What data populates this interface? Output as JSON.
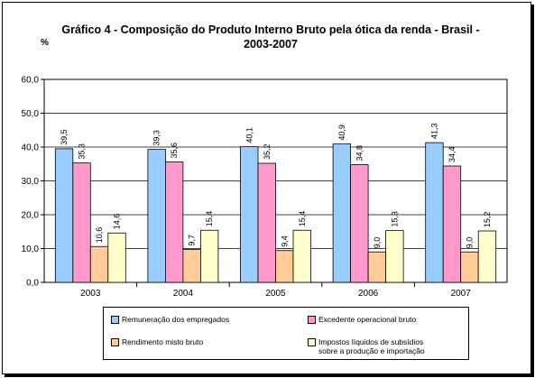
{
  "chart_data": {
    "type": "bar",
    "title": "Gráfico 4 - Composição do Produto Interno Bruto pela ótica da renda - Brasil -",
    "subtitle": "2003-2007",
    "ylabel": "%",
    "ylim": [
      0,
      60
    ],
    "yticks": [
      "0,0",
      "10,0",
      "20,0",
      "30,0",
      "40,0",
      "50,0",
      "60,0"
    ],
    "categories": [
      "2003",
      "2004",
      "2005",
      "2006",
      "2007"
    ],
    "grid": true,
    "legend_position": "bottom",
    "series": [
      {
        "name": "Remuneração dos empregados",
        "color": "#99ccff",
        "values": [
          39.5,
          39.3,
          40.1,
          40.9,
          41.3
        ],
        "labels": [
          "39,5",
          "39,3",
          "40,1",
          "40,9",
          "41,3"
        ]
      },
      {
        "name": "Excedente operacional bruto",
        "color": "#ff99cc",
        "values": [
          35.3,
          35.6,
          35.2,
          34.8,
          34.4
        ],
        "labels": [
          "35,3",
          "35,6",
          "35,2",
          "34,8",
          "34,4"
        ]
      },
      {
        "name": "Rendimento misto bruto",
        "color": "#ffcc99",
        "values": [
          10.6,
          9.7,
          9.4,
          9.0,
          9.0
        ],
        "labels": [
          "10,6",
          "9,7",
          "9,4",
          "9,0",
          "9,0"
        ]
      },
      {
        "name": "Impostos líquidos de subsídios sobre a produção e importação",
        "name_lines": [
          "Impostos líquidos de subsídios",
          "sobre a produção e importação"
        ],
        "color": "#ffffcc",
        "values": [
          14.6,
          15.4,
          15.4,
          15.3,
          15.2
        ],
        "labels": [
          "14,6",
          "15,4",
          "15,4",
          "15,3",
          "15,2"
        ]
      }
    ]
  }
}
